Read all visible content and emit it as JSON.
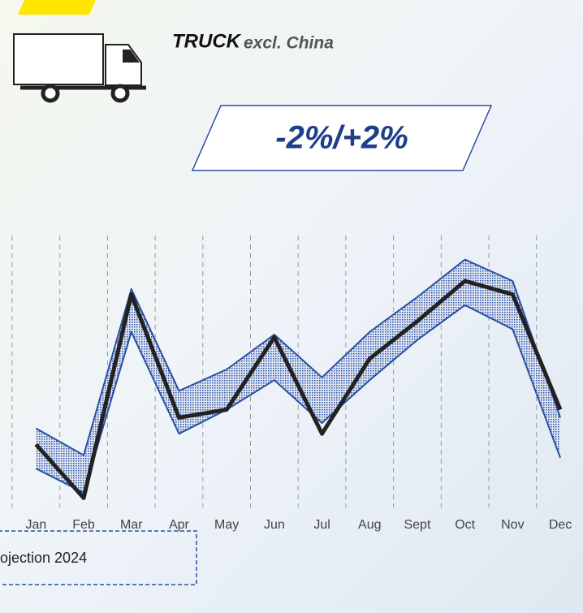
{
  "chart_data": {
    "type": "band-line",
    "title": "TRUCK",
    "subtitle": "excl. China",
    "annotations": [
      "-2%/+2%",
      "ojection 2024"
    ],
    "categories": [
      "Jan",
      "Feb",
      "Mar",
      "Apr",
      "May",
      "Jun",
      "Jul",
      "Aug",
      "Sept",
      "Oct",
      "Nov",
      "Dec"
    ],
    "series": [
      {
        "color": "#222222",
        "values": [
          22,
          2,
          78,
          32,
          35,
          62,
          26,
          54,
          68,
          83,
          78,
          35
        ]
      },
      {
        "color": "#2a4fa0",
        "values": [
          28,
          18,
          80,
          42,
          50,
          63,
          47,
          64,
          77,
          91,
          83,
          32
        ]
      },
      {
        "color": "#2a4fa0",
        "values": [
          13,
          4,
          64,
          26,
          35,
          46,
          30,
          46,
          61,
          74,
          65,
          17
        ]
      }
    ],
    "ylim": [
      0,
      100
    ],
    "grid": true
  }
}
